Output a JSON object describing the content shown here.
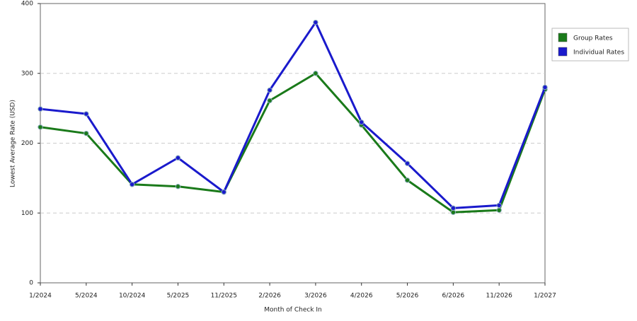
{
  "chart_data": {
    "type": "line",
    "x_label": "Month of Check In",
    "y_label": "Lowest Average Rate (USD)",
    "categories": [
      "1/2024",
      "5/2024",
      "10/2024",
      "5/2025",
      "11/2025",
      "2/2026",
      "3/2026",
      "4/2026",
      "5/2026",
      "6/2026",
      "11/2026",
      "1/2027"
    ],
    "series": [
      {
        "name": "Group Rates",
        "color": "#1a7a1a",
        "values": [
          223,
          214,
          141,
          138,
          130,
          261,
          300,
          226,
          147,
          101,
          104,
          277
        ]
      },
      {
        "name": "Individual Rates",
        "color": "#1a1acc",
        "values": [
          249,
          242,
          141,
          179,
          130,
          276,
          373,
          230,
          171,
          107,
          111,
          280
        ]
      }
    ],
    "ylim": [
      0,
      400
    ],
    "yticks": [
      0,
      100,
      200,
      300,
      400
    ],
    "grid": true,
    "legend": "right"
  }
}
